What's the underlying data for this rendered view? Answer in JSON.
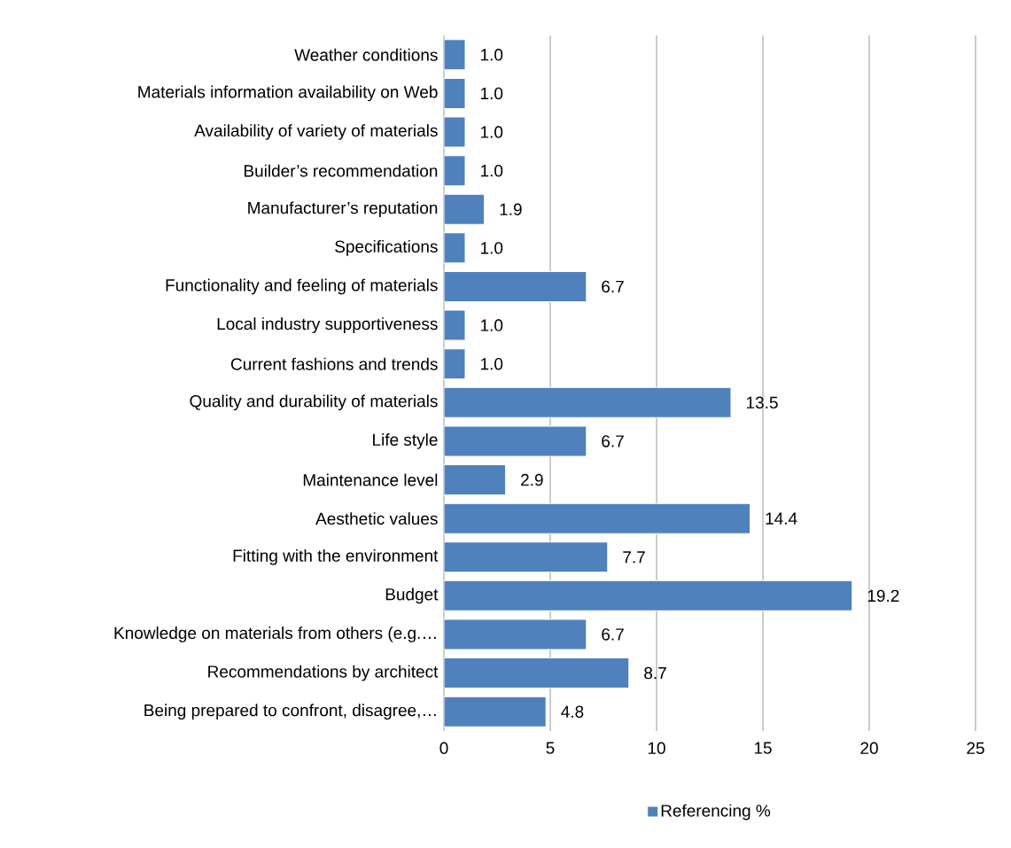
{
  "chart_data": {
    "type": "bar",
    "orientation": "horizontal",
    "categories": [
      "Weather conditions",
      "Materials information availability on Web",
      "Availability of variety of materials",
      "Builder’s recommendation",
      "Manufacturer’s reputation",
      "Specifications",
      "Functionality and feeling of materials",
      "Local industry supportiveness",
      "Current fashions and trends",
      "Quality and durability of materials",
      "Life style",
      "Maintenance level",
      "Aesthetic values",
      "Fitting with the environment",
      "Budget",
      "Knowledge on materials from others (e.g.…",
      "Recommendations by architect",
      "Being prepared to confront, disagree,…"
    ],
    "series": [
      {
        "name": "Referencing %",
        "color": "#4f81bd",
        "values": [
          1.0,
          1.0,
          1.0,
          1.0,
          1.9,
          1.0,
          6.7,
          1.0,
          1.0,
          13.5,
          6.7,
          2.9,
          14.4,
          7.7,
          19.2,
          6.7,
          8.7,
          4.8
        ]
      }
    ],
    "value_labels": [
      "1.0",
      "1.0",
      "1.0",
      "1.0",
      "1.9",
      "1.0",
      "6.7",
      "1.0",
      "1.0",
      "13.5",
      "6.7",
      "2.9",
      "14.4",
      "7.7",
      "19.2",
      "6.7",
      "8.7",
      "4.8"
    ],
    "xlim": [
      0,
      25
    ],
    "xticks": [
      0,
      5,
      10,
      15,
      20,
      25
    ],
    "grid": "x",
    "legend": "bottom"
  }
}
